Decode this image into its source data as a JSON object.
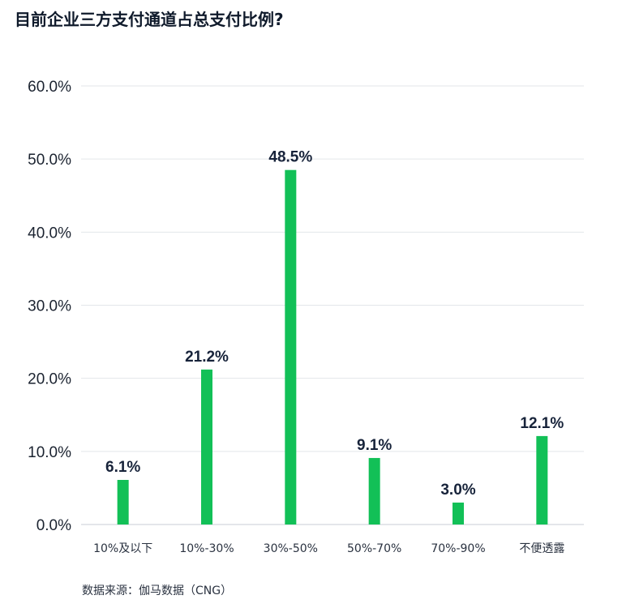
{
  "chart_data": {
    "type": "bar",
    "title": "目前企业三方支付通道占总支付比例?",
    "categories": [
      "10%及以下",
      "10%-30%",
      "30%-50%",
      "50%-70%",
      "70%-90%",
      "不便透露"
    ],
    "values": [
      6.1,
      21.2,
      48.5,
      9.1,
      3.0,
      12.1
    ],
    "data_labels": [
      "6.1%",
      "21.2%",
      "48.5%",
      "9.1%",
      "3.0%",
      "12.1%"
    ],
    "yticks": [
      "0.0%",
      "10.0%",
      "20.0%",
      "30.0%",
      "40.0%",
      "50.0%",
      "60.0%"
    ],
    "ylim": [
      0,
      60
    ],
    "xlabel": "",
    "ylabel": "",
    "grid": true,
    "legend": "none",
    "bar_color": "#12c057",
    "source": "数据来源：伽马数据（CNG）"
  }
}
